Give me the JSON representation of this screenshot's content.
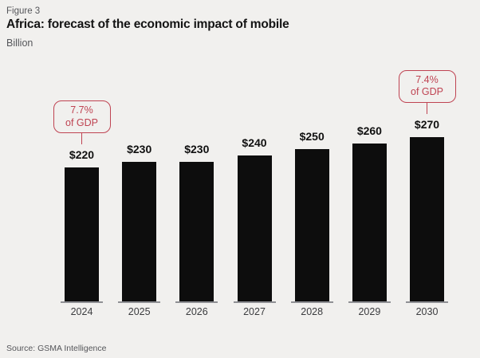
{
  "figure_label": "Figure 3",
  "title": "Africa: forecast of the economic impact of mobile",
  "subtitle": "Billion",
  "source": "Source: GSMA Intelligence",
  "colors": {
    "background": "#f1f0ee",
    "bar": "#0d0d0d",
    "accent_red": "#bf4352",
    "title_text": "#141414",
    "muted_text": "#55565a",
    "axis_gray": "#8f9094"
  },
  "chart_data": {
    "type": "bar",
    "title": "Africa: forecast of the economic impact of mobile",
    "ylabel": "Billion",
    "xlabel": "",
    "categories": [
      "2024",
      "2025",
      "2026",
      "2027",
      "2028",
      "2029",
      "2030"
    ],
    "values": [
      220,
      230,
      230,
      240,
      250,
      260,
      270
    ],
    "value_labels": [
      "$220",
      "$230",
      "$230",
      "$240",
      "$250",
      "$260",
      "$270"
    ],
    "ylim": [
      0,
      280
    ],
    "grid": false,
    "legend_position": "none",
    "annotations": [
      {
        "category": "2024",
        "lines": [
          "7.7%",
          "of GDP"
        ],
        "text": "7.7% of GDP"
      },
      {
        "category": "2030",
        "lines": [
          "7.4%",
          "of GDP"
        ],
        "text": "7.4% of GDP"
      }
    ]
  }
}
